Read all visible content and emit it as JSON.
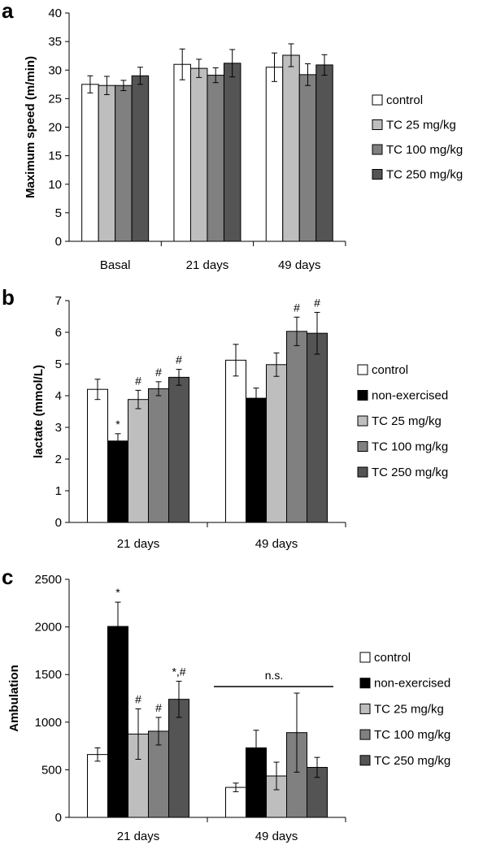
{
  "colors": {
    "control": "#ffffff",
    "non-exercised": "#000000",
    "TC 25 mg/kg": "#bebebe",
    "TC 100 mg/kg": "#808080",
    "TC 250 mg/kg": "#545454"
  },
  "chart_data": [
    {
      "panel": "a",
      "type": "bar",
      "ylabel": "Maximum speed (m/min)",
      "ylim": [
        0,
        40
      ],
      "yticks": [
        0,
        5,
        10,
        15,
        20,
        25,
        30,
        35,
        40
      ],
      "categories": [
        "Basal",
        "21 days",
        "49 days"
      ],
      "legend_position": "right",
      "series": [
        {
          "name": "control",
          "values": [
            27.5,
            31.0,
            30.5
          ],
          "errors": [
            1.5,
            2.7,
            2.5
          ],
          "annotations": [
            "",
            "",
            ""
          ]
        },
        {
          "name": "TC 25 mg/kg",
          "values": [
            27.3,
            30.3,
            32.6
          ],
          "errors": [
            1.6,
            1.6,
            2.0
          ],
          "annotations": [
            "",
            "",
            ""
          ]
        },
        {
          "name": "TC 100 mg/kg",
          "values": [
            27.3,
            29.1,
            29.2
          ],
          "errors": [
            0.9,
            1.3,
            1.9
          ],
          "annotations": [
            "",
            "",
            ""
          ]
        },
        {
          "name": "TC 250 mg/kg",
          "values": [
            29.0,
            31.2,
            30.9
          ],
          "errors": [
            1.5,
            2.4,
            1.8
          ],
          "annotations": [
            "",
            "",
            ""
          ]
        }
      ],
      "bracket": null
    },
    {
      "panel": "b",
      "type": "bar",
      "ylabel": "lactate (mmol/L)",
      "ylim": [
        0,
        7
      ],
      "yticks": [
        0,
        1,
        2,
        3,
        4,
        5,
        6,
        7
      ],
      "categories": [
        "21 days",
        "49 days"
      ],
      "legend_position": "right",
      "series": [
        {
          "name": "control",
          "values": [
            4.2,
            5.12
          ],
          "errors": [
            0.32,
            0.5
          ],
          "annotations": [
            "",
            ""
          ]
        },
        {
          "name": "non-exercised",
          "values": [
            2.57,
            3.92
          ],
          "errors": [
            0.23,
            0.32
          ],
          "annotations": [
            "*",
            ""
          ]
        },
        {
          "name": "TC 25 mg/kg",
          "values": [
            3.88,
            4.98
          ],
          "errors": [
            0.29,
            0.37
          ],
          "annotations": [
            "#",
            ""
          ]
        },
        {
          "name": "TC 100 mg/kg",
          "values": [
            4.22,
            6.03
          ],
          "errors": [
            0.22,
            0.45
          ],
          "annotations": [
            "#",
            "#"
          ]
        },
        {
          "name": "TC 250 mg/kg",
          "values": [
            4.58,
            5.97
          ],
          "errors": [
            0.25,
            0.66
          ],
          "annotations": [
            "#",
            "#"
          ]
        }
      ],
      "bracket": null
    },
    {
      "panel": "c",
      "type": "bar",
      "ylabel": "Ambulation",
      "ylim": [
        0,
        2500
      ],
      "yticks": [
        0,
        500,
        1000,
        1500,
        2000,
        2500
      ],
      "categories": [
        "21 days",
        "49 days"
      ],
      "legend_position": "right",
      "series": [
        {
          "name": "control",
          "values": [
            660,
            315
          ],
          "errors": [
            70,
            45
          ],
          "annotations": [
            "",
            ""
          ]
        },
        {
          "name": "non-exercised",
          "values": [
            2005,
            730
          ],
          "errors": [
            255,
            185
          ],
          "annotations": [
            "*",
            ""
          ]
        },
        {
          "name": "TC 25 mg/kg",
          "values": [
            875,
            435
          ],
          "errors": [
            265,
            145
          ],
          "annotations": [
            "#",
            ""
          ]
        },
        {
          "name": "TC 100 mg/kg",
          "values": [
            905,
            890
          ],
          "errors": [
            145,
            415
          ],
          "annotations": [
            "#",
            ""
          ]
        },
        {
          "name": "TC 250 mg/kg",
          "values": [
            1240,
            525
          ],
          "errors": [
            190,
            105
          ],
          "annotations": [
            "*,#",
            ""
          ]
        }
      ],
      "bracket": {
        "category_index": 1,
        "label": "n.s."
      }
    }
  ]
}
